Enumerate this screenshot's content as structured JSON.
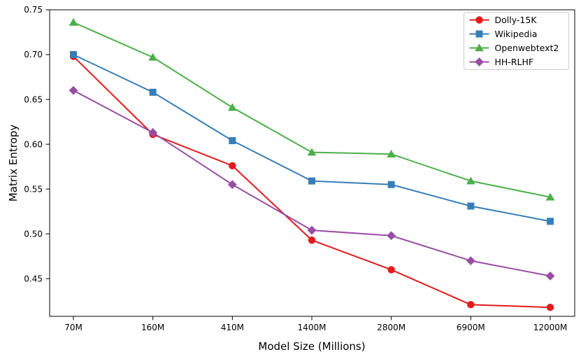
{
  "chart_data": {
    "type": "line",
    "title": "",
    "xlabel": "Model Size (Millions)",
    "ylabel": "Matrix Entropy",
    "categories": [
      "70M",
      "160M",
      "410M",
      "1400M",
      "2800M",
      "6900M",
      "12000M"
    ],
    "series": [
      {
        "name": "Dolly-15K",
        "color": "#e41a1c",
        "marker": "circle",
        "values": [
          0.698,
          0.611,
          0.576,
          0.493,
          0.46,
          0.421,
          0.418
        ]
      },
      {
        "name": "Wikipedia",
        "color": "#377eb8",
        "marker": "square",
        "values": [
          0.7,
          0.658,
          0.604,
          0.559,
          0.555,
          0.531,
          0.514
        ]
      },
      {
        "name": "Openwebtext2",
        "color": "#4daf4a",
        "marker": "triangle",
        "values": [
          0.736,
          0.697,
          0.641,
          0.591,
          0.589,
          0.559,
          0.541
        ]
      },
      {
        "name": "HH-RLHF",
        "color": "#984ea3",
        "marker": "diamond",
        "values": [
          0.66,
          0.613,
          0.555,
          0.504,
          0.498,
          0.47,
          0.453
        ]
      }
    ],
    "yticks": [
      0.45,
      0.5,
      0.55,
      0.6,
      0.65,
      0.7,
      0.75
    ],
    "ytick_labels": [
      "0.45",
      "0.50",
      "0.55",
      "0.60",
      "0.65",
      "0.70",
      "0.75"
    ],
    "ylim": [
      0.408,
      0.75
    ],
    "grid": false,
    "legend_position": "upper right",
    "colors": {
      "spine": "#000000",
      "legend_border": "#cccccc",
      "background": "#ffffff"
    }
  }
}
